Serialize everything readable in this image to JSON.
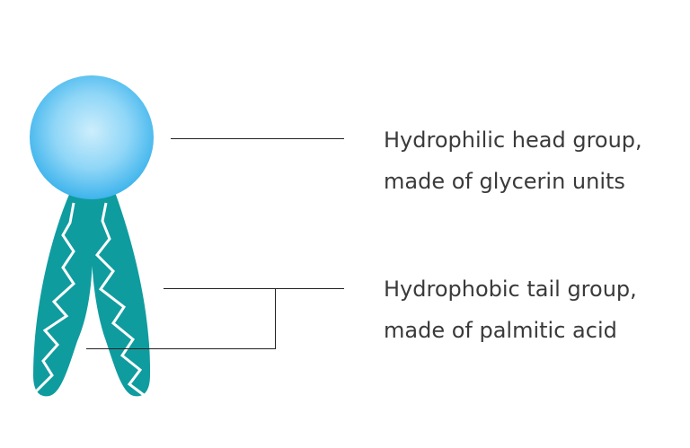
{
  "colors": {
    "head_center": "#cdeefc",
    "head_mid": "#8fd6f7",
    "head_edge": "#3eb4ec",
    "tail": "#0f9c9f",
    "zigzag": "#ffffff",
    "leader_line": "#222222",
    "text": "#3a3a3a"
  },
  "labels": {
    "head": {
      "line1": "Hydrophilic head group,",
      "line2": "made of glycerin units"
    },
    "tail": {
      "line1": "Hydrophobic tail group,",
      "line2": "made of palmitic acid"
    }
  }
}
